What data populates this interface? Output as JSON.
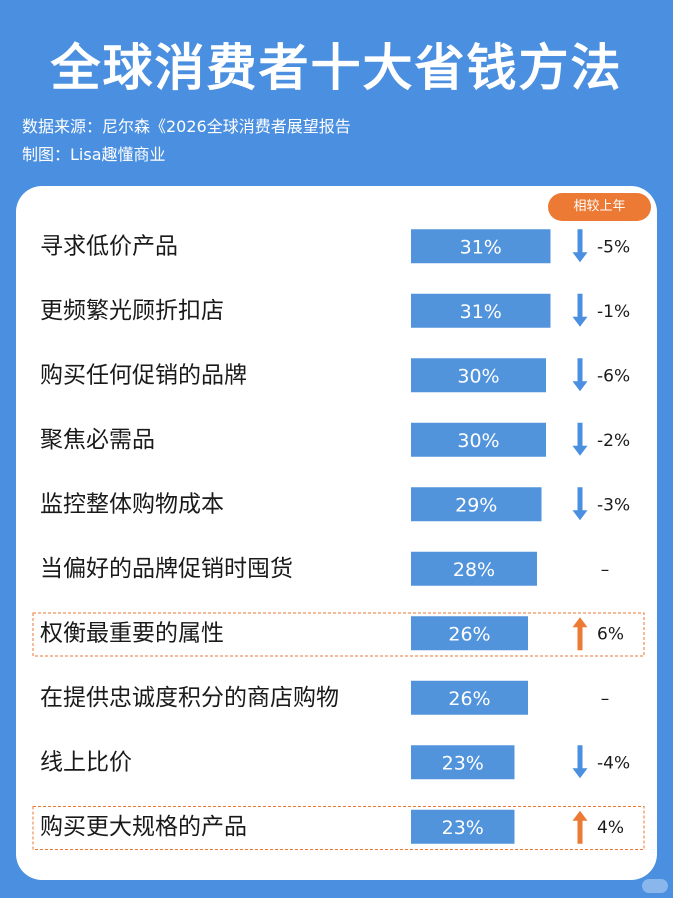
{
  "header": {
    "title": "全球消费者十大省钱方法",
    "source": "数据来源：尼尔森《2026全球消费者展望报告",
    "credit": "制图：Lisa趣懂商业"
  },
  "badge": "相较上年",
  "colors": {
    "background": "#4a8fe0",
    "bar": "#5294dc",
    "down_arrow": "#4a8fe0",
    "up_arrow": "#ec7a35",
    "badge": "#ec7a35",
    "highlight_border": "#ec7a35"
  },
  "chart_data": {
    "type": "bar",
    "orientation": "horizontal",
    "categories": [
      "寻求低价产品",
      "更频繁光顾折扣店",
      "购买任何促销的品牌",
      "聚焦必需品",
      "监控整体购物成本",
      "当偏好的品牌促销时囤货",
      "权衡最重要的属性",
      "在提供忠诚度积分的商店购物",
      "线上比价",
      "购买更大规格的产品"
    ],
    "values": [
      31,
      31,
      30,
      30,
      29,
      28,
      26,
      26,
      23,
      23
    ],
    "value_labels": [
      "31%",
      "31%",
      "30%",
      "30%",
      "29%",
      "28%",
      "26%",
      "26%",
      "23%",
      "23%"
    ],
    "unit": "%",
    "change": {
      "label": "相较上年",
      "values": [
        -5,
        -1,
        -6,
        -2,
        -3,
        null,
        6,
        null,
        -4,
        4
      ],
      "labels": [
        "-5%",
        "-1%",
        "-6%",
        "-2%",
        "-3%",
        "–",
        "6%",
        "–",
        "-4%",
        "4%"
      ]
    },
    "highlighted": [
      "权衡最重要的属性",
      "购买更大规格的产品"
    ]
  }
}
